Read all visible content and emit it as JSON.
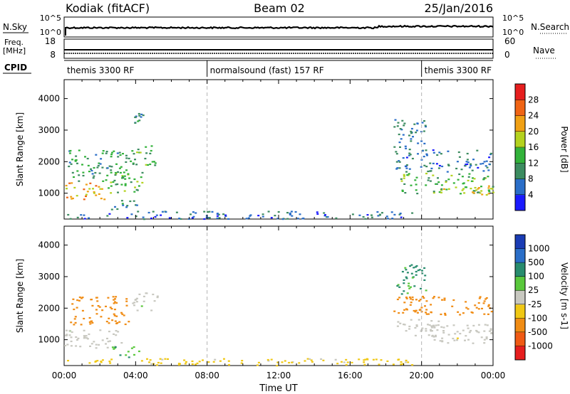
{
  "header": {
    "station": "Kodiak (fitACF)",
    "beam": "Beam 02",
    "date": "25/Jan/2016"
  },
  "strips": {
    "nsky_label": "N.Sky",
    "nsearch_label": "N.Search",
    "nsky_ticks": [
      "10^5",
      "10^0"
    ],
    "nsearch_ticks": [
      "10^5",
      "10^0"
    ],
    "freq_label_1": "Freq.",
    "freq_label_2": "[MHz]",
    "freq_ticks": [
      "18",
      "8"
    ],
    "nave_label": "Nave",
    "nave_ticks": [
      "60",
      "0"
    ],
    "cpid_label": "CPID",
    "cpid_segments": [
      {
        "label": "themis 3300 RF",
        "start_hour": 0,
        "end_hour": 8
      },
      {
        "label": "normalsound (fast) 157 RF",
        "start_hour": 8,
        "end_hour": 20
      },
      {
        "label": "themis 3300 RF",
        "start_hour": 20,
        "end_hour": 24
      }
    ]
  },
  "colors": {
    "power": [
      "#1a1aff",
      "#2a6ec8",
      "#3c8c60",
      "#32b23a",
      "#b4d21e",
      "#f0a014",
      "#f06414",
      "#e61e1e"
    ],
    "velocity": [
      "#e61e1e",
      "#f05a14",
      "#f08c14",
      "#f0c814",
      "#c8c8c0",
      "#5ac83c",
      "#288c6e",
      "#2a6ec8",
      "#1a3cb4"
    ],
    "grid": "#b4b4b4"
  },
  "chart_data": [
    {
      "type": "heatmap",
      "panel": "power",
      "ylabel": "Slant Range [km]",
      "xlabel": "",
      "xlim": [
        0,
        24
      ],
      "ylim": [
        180,
        4600
      ],
      "yticks": [
        1000,
        2000,
        3000,
        4000
      ],
      "colorbar_label": "Power [dB]",
      "colorbar_ticks": [
        "4",
        "8",
        "12",
        "16",
        "20",
        "24",
        "28"
      ],
      "colorbar_range": [
        0,
        32
      ],
      "regions": [
        {
          "t0": 0.0,
          "t1": 2.4,
          "r0": 800,
          "r1": 1350,
          "value": 22
        },
        {
          "t0": 2.4,
          "t1": 4.4,
          "r0": 1000,
          "r1": 1700,
          "value": 14
        },
        {
          "t0": 0.2,
          "t1": 3.8,
          "r0": 1400,
          "r1": 2400,
          "value": 11
        },
        {
          "t0": 3.8,
          "t1": 5.2,
          "r0": 1900,
          "r1": 2600,
          "value": 13
        },
        {
          "t0": 2.5,
          "t1": 4.2,
          "r0": 500,
          "r1": 800,
          "value": 10
        },
        {
          "t0": 3.8,
          "t1": 4.4,
          "r0": 3200,
          "r1": 3550,
          "value": 9
        },
        {
          "t0": 0.0,
          "t1": 19.5,
          "r0": 200,
          "r1": 450,
          "value": 7
        },
        {
          "t0": 18.8,
          "t1": 24.0,
          "r0": 1000,
          "r1": 1650,
          "value": 14
        },
        {
          "t0": 21.0,
          "t1": 24.0,
          "r0": 950,
          "r1": 1250,
          "value": 20
        },
        {
          "t0": 18.5,
          "t1": 24.0,
          "r0": 1700,
          "r1": 2400,
          "value": 7
        },
        {
          "t0": 18.4,
          "t1": 20.2,
          "r0": 2400,
          "r1": 3400,
          "value": 8
        }
      ]
    },
    {
      "type": "heatmap",
      "panel": "velocity",
      "ylabel": "Slant Range [km]",
      "xlabel": "Time UT",
      "xlim": [
        0,
        24
      ],
      "ylim": [
        180,
        4600
      ],
      "yticks": [
        1000,
        2000,
        3000,
        4000
      ],
      "xticks": [
        "00:00",
        "04:00",
        "08:00",
        "12:00",
        "16:00",
        "20:00",
        "00:00"
      ],
      "colorbar_label": "Velocity [m s-1]",
      "colorbar_ticks": [
        "-1000",
        "-500",
        "-100",
        "-25",
        "25",
        "100",
        "500",
        "1000"
      ],
      "regions": [
        {
          "t0": 0.0,
          "t1": 3.2,
          "r0": 750,
          "r1": 1400,
          "value": 0
        },
        {
          "t0": 3.8,
          "t1": 5.2,
          "r0": 1900,
          "r1": 2500,
          "value": 0
        },
        {
          "t0": 0.3,
          "t1": 3.6,
          "r0": 1500,
          "r1": 2400,
          "value": -150
        },
        {
          "t0": 2.6,
          "t1": 4.2,
          "r0": 450,
          "r1": 800,
          "value": 80
        },
        {
          "t0": 0.0,
          "t1": 19.5,
          "r0": 200,
          "r1": 420,
          "value": -50
        },
        {
          "t0": 20.0,
          "t1": 24.0,
          "r0": 900,
          "r1": 1500,
          "value": 0
        },
        {
          "t0": 18.6,
          "t1": 21.2,
          "r0": 1100,
          "r1": 1700,
          "value": 0
        },
        {
          "t0": 18.4,
          "t1": 24.0,
          "r0": 1800,
          "r1": 2400,
          "value": -150
        },
        {
          "t0": 18.5,
          "t1": 20.2,
          "r0": 2400,
          "r1": 3400,
          "value": 120
        }
      ]
    }
  ]
}
